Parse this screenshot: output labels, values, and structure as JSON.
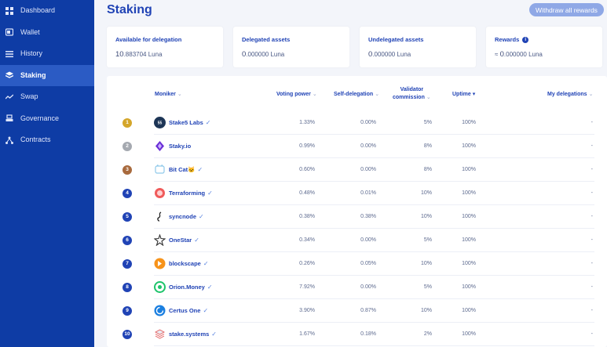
{
  "sidebar": {
    "items": [
      {
        "label": "Dashboard",
        "icon": "dashboard-icon",
        "active": false
      },
      {
        "label": "Wallet",
        "icon": "wallet-icon",
        "active": false
      },
      {
        "label": "History",
        "icon": "history-icon",
        "active": false
      },
      {
        "label": "Staking",
        "icon": "staking-icon",
        "active": true
      },
      {
        "label": "Swap",
        "icon": "swap-icon",
        "active": false
      },
      {
        "label": "Governance",
        "icon": "governance-icon",
        "active": false
      },
      {
        "label": "Contracts",
        "icon": "contracts-icon",
        "active": false
      }
    ]
  },
  "page": {
    "title": "Staking",
    "withdraw_label": "Withdraw all rewards"
  },
  "cards": [
    {
      "title": "Available for delegation",
      "prefix": "",
      "int": "10",
      "dec": ".883704",
      "unit": "Luna",
      "info": false
    },
    {
      "title": "Delegated assets",
      "prefix": "",
      "int": "0",
      "dec": ".000000",
      "unit": "Luna",
      "info": false
    },
    {
      "title": "Undelegated assets",
      "prefix": "",
      "int": "0",
      "dec": ".000000",
      "unit": "Luna",
      "info": false
    },
    {
      "title": "Rewards",
      "prefix": "≈ ",
      "int": "0",
      "dec": ".000000",
      "unit": "Luna",
      "info": true
    }
  ],
  "table": {
    "headers": {
      "moniker": "Moniker",
      "voting_power": "Voting power",
      "self_delegation": "Self-delegation",
      "commission_line1": "Validator",
      "commission_line2": "commission",
      "uptime": "Uptime",
      "my_delegations": "My delegations"
    },
    "rows": [
      {
        "rank": "1",
        "moniker": "Stake5 Labs",
        "verified": true,
        "voting_power": "1.33%",
        "self_delegation": "0.00%",
        "commission": "5%",
        "uptime": "100%",
        "my_delegations": "-"
      },
      {
        "rank": "2",
        "moniker": "Staky.io",
        "verified": false,
        "voting_power": "0.99%",
        "self_delegation": "0.00%",
        "commission": "8%",
        "uptime": "100%",
        "my_delegations": "-"
      },
      {
        "rank": "3",
        "moniker": "Bit Cat🐱",
        "verified": true,
        "voting_power": "0.60%",
        "self_delegation": "0.00%",
        "commission": "8%",
        "uptime": "100%",
        "my_delegations": "-"
      },
      {
        "rank": "4",
        "moniker": "Terraforming",
        "verified": true,
        "voting_power": "0.48%",
        "self_delegation": "0.01%",
        "commission": "10%",
        "uptime": "100%",
        "my_delegations": "-"
      },
      {
        "rank": "5",
        "moniker": "syncnode",
        "verified": true,
        "voting_power": "0.38%",
        "self_delegation": "0.38%",
        "commission": "10%",
        "uptime": "100%",
        "my_delegations": "-"
      },
      {
        "rank": "6",
        "moniker": "OneStar",
        "verified": true,
        "voting_power": "0.34%",
        "self_delegation": "0.00%",
        "commission": "5%",
        "uptime": "100%",
        "my_delegations": "-"
      },
      {
        "rank": "7",
        "moniker": "blockscape",
        "verified": true,
        "voting_power": "0.26%",
        "self_delegation": "0.05%",
        "commission": "10%",
        "uptime": "100%",
        "my_delegations": "-"
      },
      {
        "rank": "8",
        "moniker": "Orion.Money",
        "verified": true,
        "voting_power": "7.92%",
        "self_delegation": "0.00%",
        "commission": "5%",
        "uptime": "100%",
        "my_delegations": "-"
      },
      {
        "rank": "9",
        "moniker": "Certus One",
        "verified": true,
        "voting_power": "3.90%",
        "self_delegation": "0.87%",
        "commission": "10%",
        "uptime": "100%",
        "my_delegations": "-"
      },
      {
        "rank": "10",
        "moniker": "stake.systems",
        "verified": true,
        "voting_power": "1.67%",
        "self_delegation": "0.18%",
        "commission": "2%",
        "uptime": "100%",
        "my_delegations": "-"
      }
    ]
  },
  "colors": {
    "sidebar_bg": "#0e3ca5",
    "sidebar_active": "#2b5bc4",
    "accent": "#2043b5",
    "rank_gold": "#d4a62a",
    "rank_silver": "#a5a9b0",
    "rank_bronze": "#a86a3d",
    "rank_default": "#2043b5"
  },
  "rank_logo_icons": [
    "stake5-logo-icon",
    "staky-logo-icon",
    "bitcat-logo-icon",
    "terraforming-logo-icon",
    "syncnode-logo-icon",
    "onestar-logo-icon",
    "blockscape-logo-icon",
    "orion-logo-icon",
    "certus-logo-icon",
    "stakesystems-logo-icon"
  ]
}
